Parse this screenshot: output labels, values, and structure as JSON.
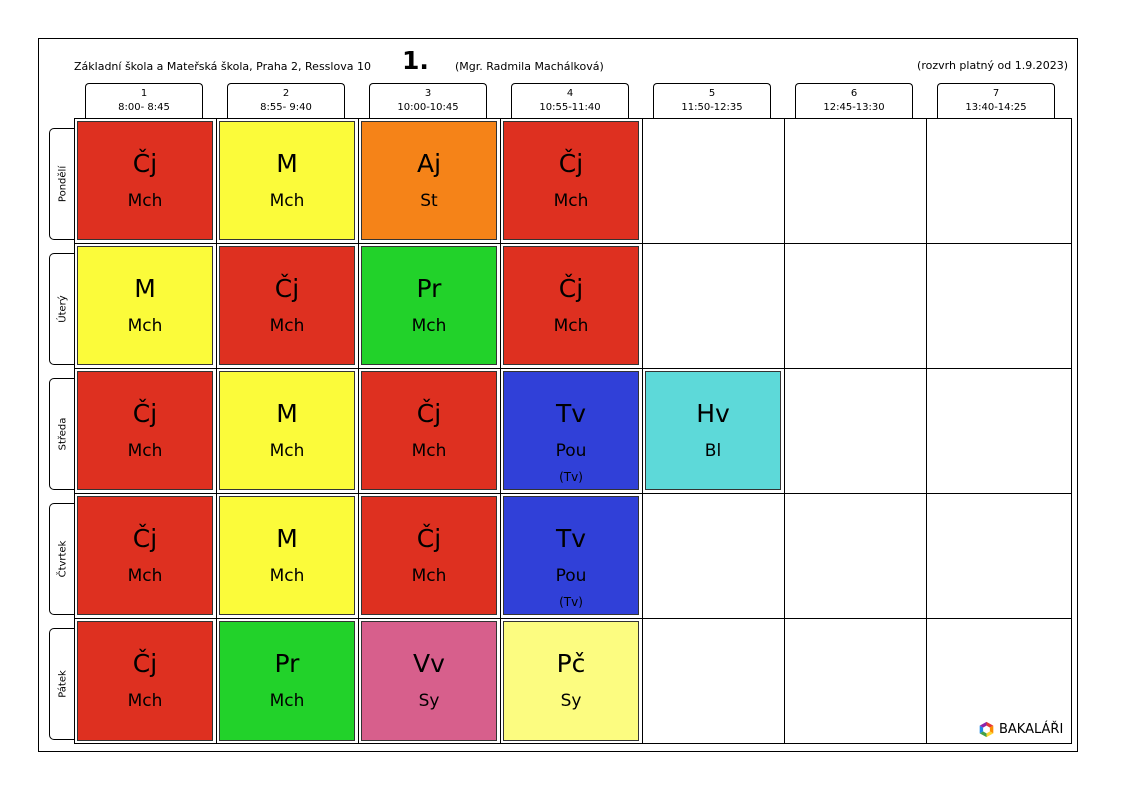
{
  "header": {
    "school": "Základní škola a Mateřská škola, Praha 2, Resslova 10",
    "class_name": "1.",
    "teacher": "(Mgr. Radmila Machálková)",
    "valid_from": "(rozvrh platný od 1.9.2023)"
  },
  "periods": [
    {
      "number": "1",
      "time": "8:00- 8:45"
    },
    {
      "number": "2",
      "time": "8:55- 9:40"
    },
    {
      "number": "3",
      "time": "10:00-10:45"
    },
    {
      "number": "4",
      "time": "10:55-11:40"
    },
    {
      "number": "5",
      "time": "11:50-12:35"
    },
    {
      "number": "6",
      "time": "12:45-13:30"
    },
    {
      "number": "7",
      "time": "13:40-14:25"
    }
  ],
  "colors": {
    "Čj": "#de3020",
    "M": "#fbfb3a",
    "Aj": "#f58318",
    "Pr": "#22d22a",
    "Tv": "#3040d8",
    "Hv": "#5dd9d9",
    "Vv": "#d75f8c",
    "Pč": "#fcfc80"
  },
  "days": [
    {
      "name": "Pondělí",
      "lessons": [
        {
          "subject": "Čj",
          "teacher": "Mch"
        },
        {
          "subject": "M",
          "teacher": "Mch"
        },
        {
          "subject": "Aj",
          "teacher": "St"
        },
        {
          "subject": "Čj",
          "teacher": "Mch"
        }
      ]
    },
    {
      "name": "Úterý",
      "lessons": [
        {
          "subject": "M",
          "teacher": "Mch"
        },
        {
          "subject": "Čj",
          "teacher": "Mch"
        },
        {
          "subject": "Pr",
          "teacher": "Mch"
        },
        {
          "subject": "Čj",
          "teacher": "Mch"
        }
      ]
    },
    {
      "name": "Středa",
      "lessons": [
        {
          "subject": "Čj",
          "teacher": "Mch"
        },
        {
          "subject": "M",
          "teacher": "Mch"
        },
        {
          "subject": "Čj",
          "teacher": "Mch"
        },
        {
          "subject": "Tv",
          "teacher": "Pou",
          "group": "(Tv)"
        },
        {
          "subject": "Hv",
          "teacher": "Bl"
        }
      ]
    },
    {
      "name": "Čtvrtek",
      "lessons": [
        {
          "subject": "Čj",
          "teacher": "Mch"
        },
        {
          "subject": "M",
          "teacher": "Mch"
        },
        {
          "subject": "Čj",
          "teacher": "Mch"
        },
        {
          "subject": "Tv",
          "teacher": "Pou",
          "group": "(Tv)"
        }
      ]
    },
    {
      "name": "Pátek",
      "lessons": [
        {
          "subject": "Čj",
          "teacher": "Mch"
        },
        {
          "subject": "Pr",
          "teacher": "Mch"
        },
        {
          "subject": "Vv",
          "teacher": "Sy"
        },
        {
          "subject": "Pč",
          "teacher": "Sy"
        }
      ]
    }
  ],
  "brand": {
    "name": "BAKALÁŘI",
    "icon": "bakalari-logo-icon"
  }
}
